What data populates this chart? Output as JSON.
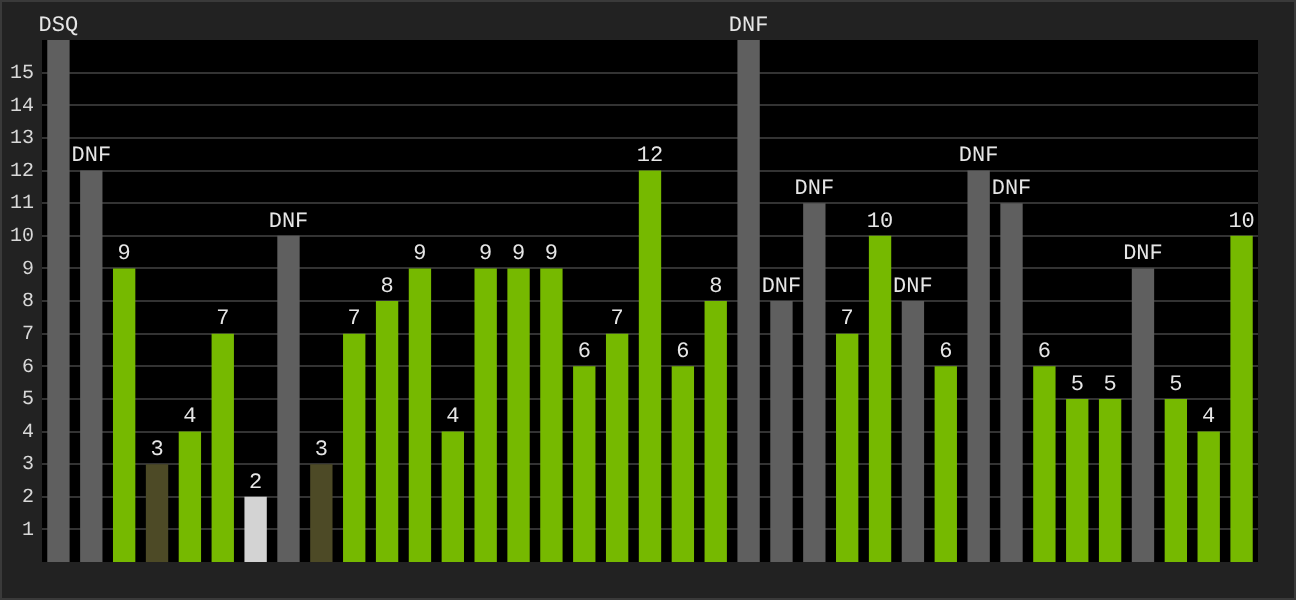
{
  "chart_data": {
    "type": "bar",
    "categories": [
      null,
      null,
      null,
      null,
      null,
      null,
      null,
      null,
      null,
      null,
      null,
      null,
      null,
      null,
      null,
      null,
      null,
      null,
      null,
      null,
      null,
      null,
      null,
      null,
      null,
      null,
      null,
      null,
      null,
      null,
      null,
      null,
      null,
      null,
      null,
      null,
      null
    ],
    "values": [
      16,
      12,
      9,
      3,
      4,
      7,
      2,
      10,
      3,
      7,
      8,
      9,
      4,
      9,
      9,
      9,
      6,
      7,
      12,
      6,
      8,
      16,
      8,
      11,
      7,
      10,
      8,
      6,
      12,
      11,
      6,
      5,
      5,
      9,
      5,
      4,
      10
    ],
    "colors": [
      "#5f5f5f",
      "#5f5f5f",
      "#76b900",
      "#4d4a26",
      "#76b900",
      "#76b900",
      "#d3d3d3",
      "#5f5f5f",
      "#4d4a26",
      "#76b900",
      "#76b900",
      "#76b900",
      "#76b900",
      "#76b900",
      "#76b900",
      "#76b900",
      "#76b900",
      "#76b900",
      "#76b900",
      "#76b900",
      "#76b900",
      "#5f5f5f",
      "#5f5f5f",
      "#5f5f5f",
      "#76b900",
      "#76b900",
      "#5f5f5f",
      "#76b900",
      "#5f5f5f",
      "#5f5f5f",
      "#76b900",
      "#76b900",
      "#76b900",
      "#5f5f5f",
      "#76b900",
      "#76b900",
      "#76b900"
    ],
    "value_labels": [
      "DSQ",
      "DNF",
      "9",
      "3",
      "4",
      "7",
      "2",
      "DNF",
      "3",
      "7",
      "8",
      "9",
      "4",
      "9",
      "9",
      "9",
      "6",
      "7",
      "12",
      "6",
      "8",
      "DNF",
      "DNF",
      "DNF",
      "7",
      "10",
      "DNF",
      "6",
      "DNF",
      "DNF",
      "6",
      "5",
      "5",
      "DNF",
      "5",
      "4",
      "10"
    ],
    "ylim": [
      0,
      16
    ],
    "yticks": [
      1,
      2,
      3,
      4,
      5,
      6,
      7,
      8,
      9,
      10,
      11,
      12,
      13,
      14,
      15
    ],
    "tick_labels": "y",
    "grid": "y",
    "legend": false
  }
}
